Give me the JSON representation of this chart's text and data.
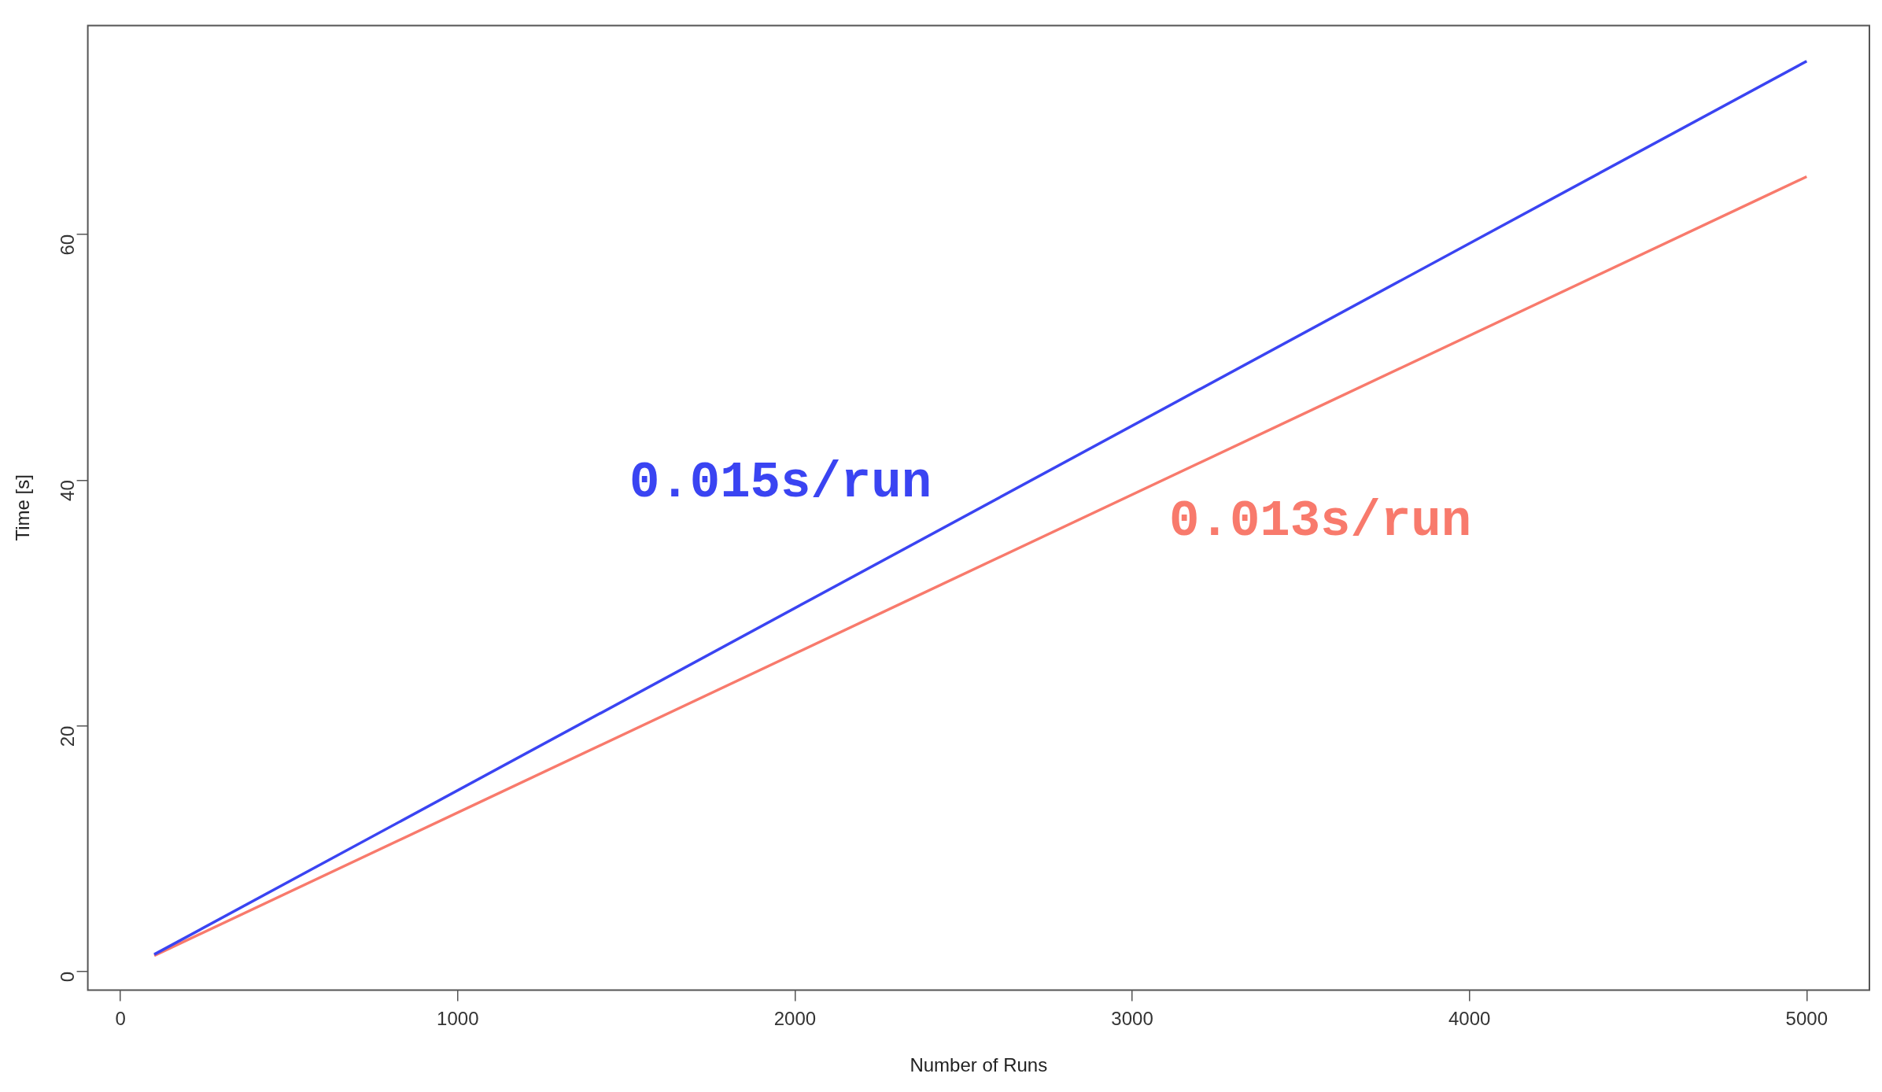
{
  "chart_data": {
    "type": "line",
    "xlabel": "Number of Runs",
    "ylabel": "Time [s]",
    "x": [
      100,
      5000
    ],
    "series": [
      {
        "color": "#3a44f2",
        "values": [
          1.4,
          74.1
        ]
      },
      {
        "color": "#f87a6c",
        "values": [
          1.3,
          64.7
        ]
      }
    ],
    "xlim": [
      -97,
      5186
    ],
    "xticks": [
      0,
      1000,
      2000,
      3000,
      4000,
      5000
    ],
    "ylim": [
      -1.5,
      77
    ],
    "yticks": [
      0,
      20,
      40,
      60
    ],
    "grid": false,
    "legend": false,
    "marker": "none",
    "line_style": "solid",
    "annotations": [
      "0.015s/run",
      "0.013s/run"
    ]
  }
}
